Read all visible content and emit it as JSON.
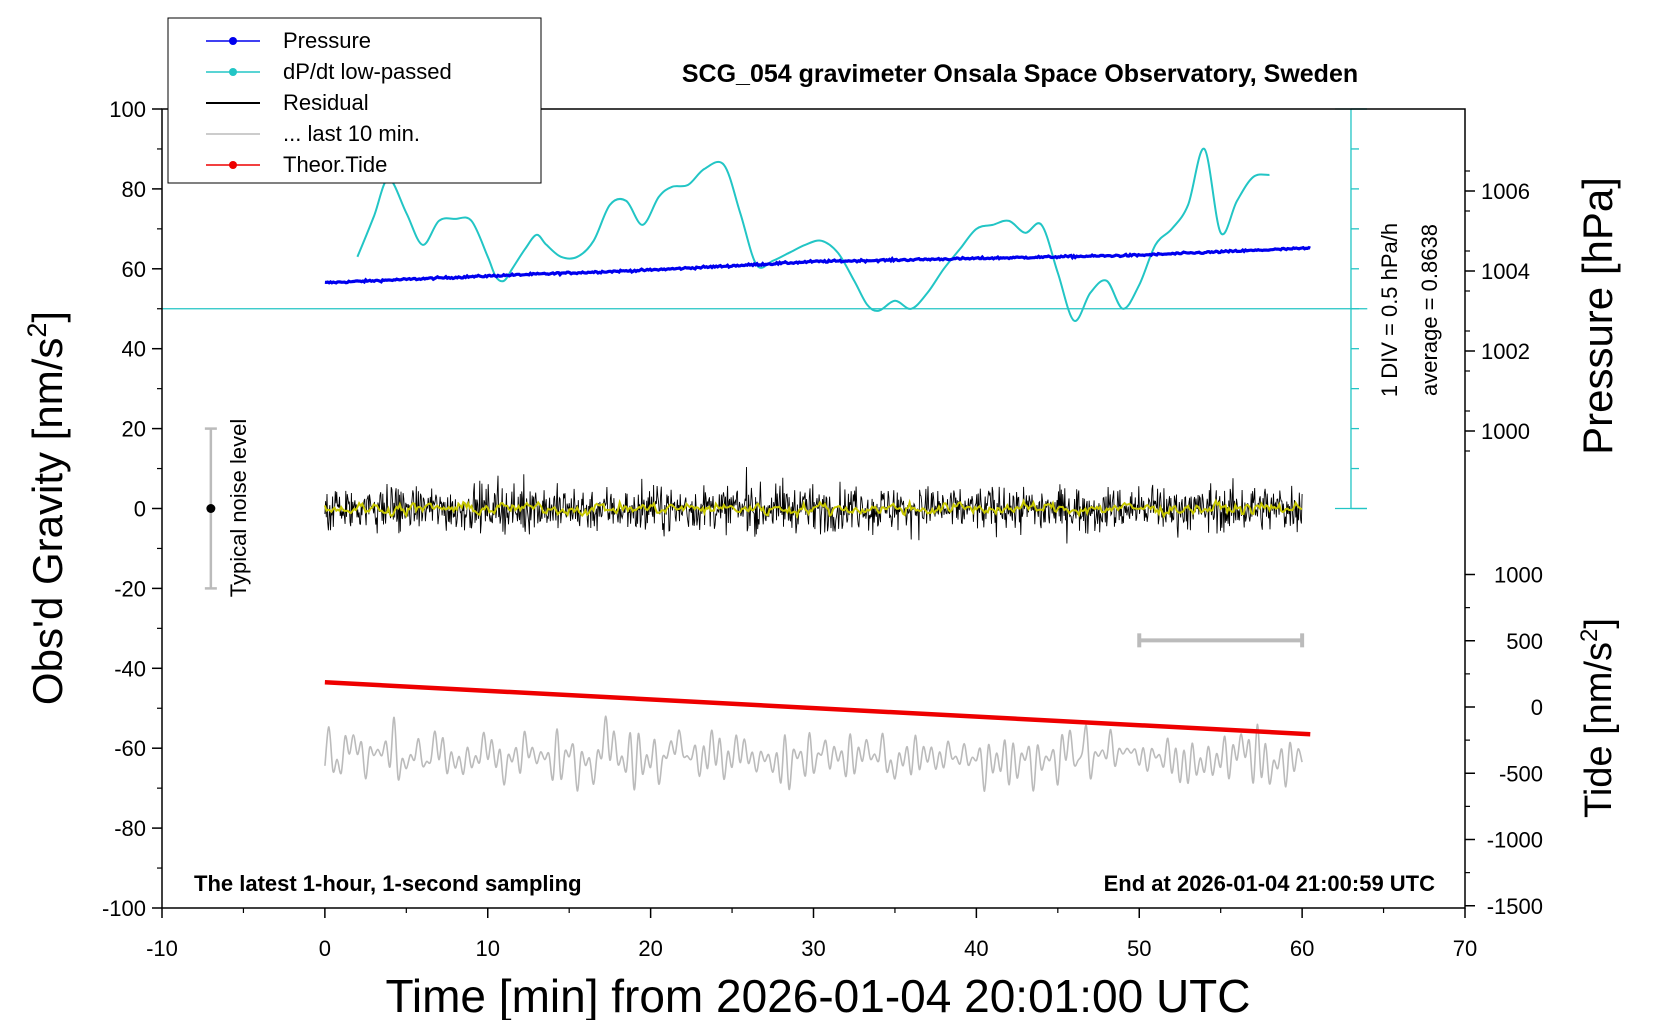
{
  "chart_data": {
    "type": "line",
    "title": "SCG_054 gravimeter Onsala Space Observatory, Sweden",
    "xlabel": "Time [min] from 2026-01-04 20:01:00 UTC",
    "ylabel_left": "Obs'd Gravity [nm/s",
    "ylabel_left_sup": "2",
    "ylabel_left_end": "]",
    "ylabel_right_top": "Pressure [hPa]",
    "ylabel_right_bottom": "Tide [nm/s",
    "ylabel_right_bottom_sup": "2",
    "ylabel_right_bottom_end": "]",
    "xlim": [
      -10,
      70
    ],
    "ylim": [
      -100,
      100
    ],
    "x_ticks": [
      -10,
      0,
      10,
      20,
      30,
      40,
      50,
      60,
      70
    ],
    "y_ticks": [
      100,
      80,
      60,
      40,
      20,
      0,
      -20,
      -40,
      -60,
      -80,
      -100
    ],
    "pressure_ticks": [
      1006,
      1004,
      1002,
      1000
    ],
    "tide_ticks": [
      1000,
      500,
      0,
      -500,
      -1000,
      -1500
    ],
    "footer_left": "The latest 1-hour, 1-second sampling",
    "footer_right": "End at 2026-01-04 21:00:59 UTC",
    "noise_label": "Typical noise level",
    "scale_text_1": "1 DIV = 0.5 hPa/h",
    "scale_text_2": "average = 0.8638",
    "legend": [
      {
        "name": "Pressure",
        "color": "#0000ee",
        "marker": true
      },
      {
        "name": "dP/dt low-passed",
        "color": "#22c5c5",
        "marker": true
      },
      {
        "name": "Residual",
        "color": "#000000",
        "marker": false
      },
      {
        "name": "... last 10 min.",
        "color": "#bbbbbb",
        "marker": false
      },
      {
        "name": "Theor.Tide",
        "color": "#ee0000",
        "marker": true
      }
    ],
    "legend_position": "top-left",
    "series": {
      "pressure": {
        "x": [
          0,
          10,
          20,
          30,
          40,
          50,
          60
        ],
        "y": [
          56.5,
          58.2,
          59.7,
          61.8,
          62.6,
          63.4,
          65.1
        ]
      },
      "dpdt": {
        "x": [
          2,
          3,
          3.9,
          5,
          6,
          7,
          8,
          9,
          10,
          10.5,
          11,
          11.5,
          12.3,
          13,
          13.6,
          14.5,
          15.5,
          16.5,
          17.5,
          18.5,
          19.5,
          20.5,
          21.3,
          22.3,
          23.3,
          24.5,
          25.5,
          26.5,
          27.5,
          28.5,
          29.5,
          30.5,
          31.5,
          32.5,
          33.3,
          34,
          35,
          36,
          37,
          38,
          39,
          40,
          41,
          42,
          43,
          44,
          45,
          46,
          47,
          48,
          49,
          50,
          51,
          52,
          53,
          54,
          55,
          56,
          57,
          58
        ],
        "y": [
          63,
          73,
          82.5,
          74,
          66,
          72,
          72.5,
          72,
          63,
          58,
          57,
          60,
          65,
          68.5,
          66,
          63,
          63,
          67,
          76,
          77,
          71,
          78,
          80.5,
          81,
          85,
          86,
          74,
          61,
          62,
          64,
          66,
          67,
          64,
          57,
          51,
          49.5,
          52,
          50,
          54,
          60,
          65,
          70,
          71,
          72,
          69,
          71,
          59,
          47,
          54,
          57,
          50,
          56,
          66,
          70,
          76,
          90,
          69,
          77,
          83,
          83.5
        ]
      },
      "dpdt_reference": 50,
      "residual": {
        "x_start": 0,
        "x_end": 60,
        "center": 0,
        "amplitude": 10
      },
      "residual_smoothed": {
        "x_start": 0,
        "x_end": 60,
        "center": 0,
        "amplitude": 2
      },
      "tide": {
        "x": [
          0,
          60.5
        ],
        "y": [
          -43.5,
          -56.5
        ]
      },
      "last_10_min": {
        "x_start": 0,
        "x_end": 60,
        "center": -62,
        "amplitude": 9
      },
      "last_10_min_bar": {
        "x": [
          50,
          60
        ],
        "y": -33
      },
      "noise_bar": {
        "x": -7,
        "y_low": -20,
        "y_high": 20
      }
    }
  }
}
